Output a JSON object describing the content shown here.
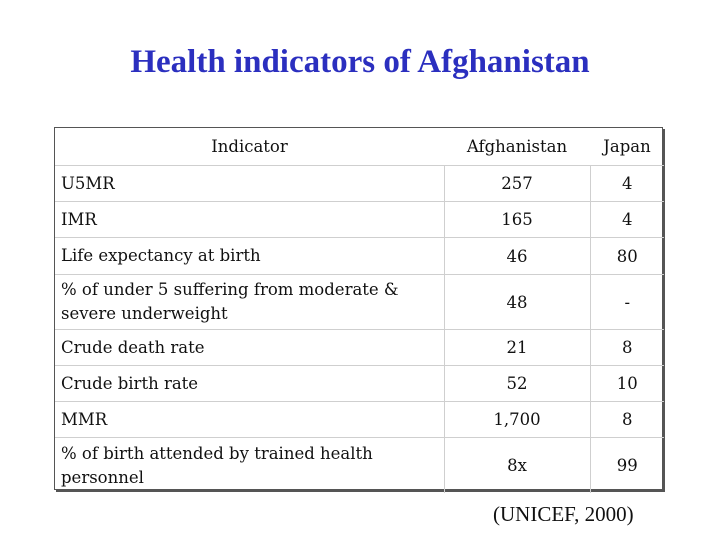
{
  "title": "Health indicators of Afghanistan",
  "table": {
    "headers": [
      "Indicator",
      "Afghanistan",
      "Japan"
    ],
    "rows": [
      [
        "U5MR",
        "257",
        "4"
      ],
      [
        "IMR",
        "165",
        "4"
      ],
      [
        "Life expectancy at birth",
        "46",
        "80"
      ],
      [
        "% of under 5 suffering from moderate & severe underweight",
        "48",
        "-"
      ],
      [
        "Crude death rate",
        "21",
        "8"
      ],
      [
        "Crude birth rate",
        "52",
        "10"
      ],
      [
        "MMR",
        "1,700",
        "8"
      ],
      [
        "% of birth attended by trained health personnel",
        "8x",
        "99"
      ]
    ]
  },
  "source": "(UNICEF, 2000)"
}
